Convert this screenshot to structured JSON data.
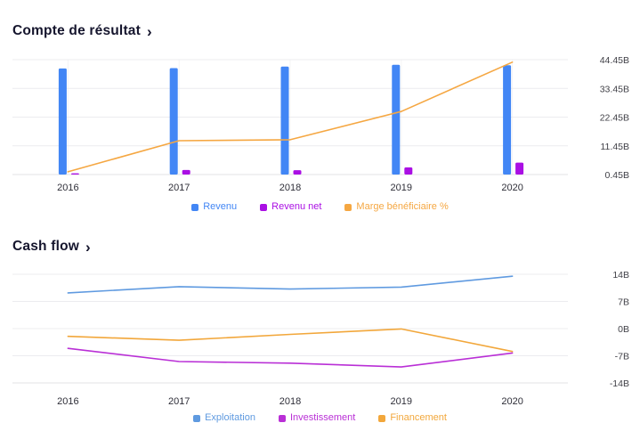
{
  "page": {
    "background": "#ffffff",
    "accent_blue": "#4286f5",
    "accent_purple": "#aa0fe4",
    "accent_orange": "#f5a53c"
  },
  "chart_data": [
    {
      "type": "bar",
      "title": "Compte de résultat",
      "chevron": "›",
      "categories": [
        "2016",
        "2017",
        "2018",
        "2019",
        "2020"
      ],
      "y_axis": {
        "side": "right",
        "min": 0.45,
        "max": 44.45,
        "ticks": [
          {
            "label": "44.45B",
            "value": 44.45
          },
          {
            "label": "33.45B",
            "value": 33.45
          },
          {
            "label": "22.45B",
            "value": 22.45
          },
          {
            "label": "11.45B",
            "value": 11.45
          },
          {
            "label": "0.45B",
            "value": 0.45
          }
        ]
      },
      "grid": "horizontal+faint-vertical",
      "legend_position": "bottom-center",
      "series": [
        {
          "name": "Revenu",
          "type": "bar",
          "color": "#4286f5",
          "values": [
            41.1,
            41.2,
            41.8,
            42.5,
            42.3
          ]
        },
        {
          "name": "Revenu net",
          "type": "bar",
          "color": "#aa0fe4",
          "values": [
            0.9,
            2.2,
            2.1,
            3.2,
            5.0
          ]
        },
        {
          "name": "Marge bénéficiaire %",
          "type": "line",
          "color": "#f5a742",
          "values": [
            1.5,
            13.4,
            13.8,
            24.6,
            43.5
          ]
        }
      ]
    },
    {
      "type": "line",
      "title": "Cash flow",
      "chevron": "›",
      "categories": [
        "2016",
        "2017",
        "2018",
        "2019",
        "2020"
      ],
      "y_axis": {
        "side": "right",
        "min": -14,
        "max": 14,
        "ticks": [
          {
            "label": "14B",
            "value": 14
          },
          {
            "label": "7B",
            "value": 7
          },
          {
            "label": "0B",
            "value": 0
          },
          {
            "label": "-7B",
            "value": -7
          },
          {
            "label": "-14B",
            "value": -14
          }
        ]
      },
      "grid": "horizontal",
      "legend_position": "bottom-center",
      "series": [
        {
          "name": "Exploitation",
          "type": "line",
          "color": "#5f9ae0",
          "values": [
            9.2,
            10.8,
            10.2,
            10.7,
            13.5
          ]
        },
        {
          "name": "Investissement",
          "type": "line",
          "color": "#b92fd6",
          "values": [
            -5.1,
            -8.5,
            -8.9,
            -9.9,
            -6.3
          ]
        },
        {
          "name": "Financement",
          "type": "line",
          "color": "#f2a73b",
          "values": [
            -2.0,
            -3.0,
            -1.5,
            -0.1,
            -5.9
          ]
        }
      ]
    }
  ]
}
